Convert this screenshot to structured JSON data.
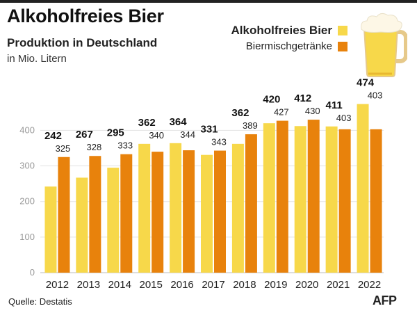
{
  "header": {
    "title": "Alkoholfreies Bier",
    "subtitle": "Produktion in Deutschland",
    "unit": "in Mio. Litern"
  },
  "legend": {
    "items": [
      {
        "label": "Alkoholfreies Bier",
        "color": "#f7d84a"
      },
      {
        "label": "Biermischgetränke",
        "color": "#e8820c"
      }
    ]
  },
  "footer": {
    "source": "Quelle: Destatis",
    "logo_text": "AFP"
  },
  "icons": {
    "decoration": "beer-glass-icon"
  },
  "chart_data": {
    "type": "bar",
    "categories": [
      "2012",
      "2013",
      "2014",
      "2015",
      "2016",
      "2017",
      "2018",
      "2019",
      "2020",
      "2021",
      "2022"
    ],
    "series": [
      {
        "name": "Alkoholfreies Bier",
        "color": "#f7d84a",
        "values": [
          242,
          267,
          295,
          362,
          364,
          331,
          362,
          420,
          412,
          411,
          474
        ]
      },
      {
        "name": "Biermischgetränke",
        "color": "#e8820c",
        "values": [
          325,
          328,
          333,
          340,
          344,
          343,
          389,
          427,
          430,
          403,
          403
        ]
      }
    ],
    "yticks": [
      0,
      100,
      200,
      300,
      400
    ],
    "ylim": [
      0,
      474
    ],
    "grid": true,
    "legend_position": "top-right"
  }
}
